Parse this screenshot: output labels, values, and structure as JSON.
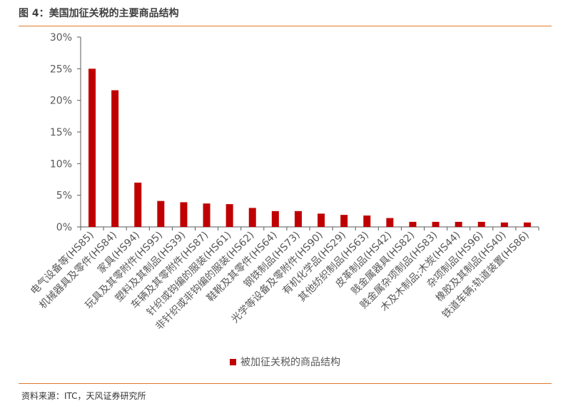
{
  "figure_title": "图 4：美国加征关税的主要商品结构",
  "source": "资料来源：ITC，天风证券研究所",
  "colors": {
    "bar": "#c00000",
    "rule": "#e07b2e",
    "axis": "#595959"
  },
  "chart_data": {
    "type": "bar",
    "title": "",
    "xlabel": "",
    "ylabel": "",
    "ylim": [
      0,
      30
    ],
    "y_ticks": [
      "0%",
      "5%",
      "10%",
      "15%",
      "20%",
      "25%",
      "30%"
    ],
    "y_tick_values": [
      0,
      5,
      10,
      15,
      20,
      25,
      30
    ],
    "grid": false,
    "legend_position": "bottom",
    "categories": [
      "电气设备等(HS85)",
      "机械器具及零件(HS84)",
      "家具(HS94)",
      "玩具及其零附件(HS95)",
      "塑料及其制品(HS39)",
      "车辆及其零附件(HS87)",
      "针织或钩编的服装(HS61)",
      "非针织或非钩编的服装(HS62)",
      "鞋靴及其零件(HS64)",
      "钢铁制品(HS73)",
      "光学等设备及零附件(HS90)",
      "有机化学品(HS29)",
      "其他纺织制品(HS63)",
      "皮革制品(HS42)",
      "贱金属器具(HS82)",
      "贱金属杂项制品(HS83)",
      "木及木制品;木炭(HS44)",
      "杂项制品(HS96)",
      "橡胶及其制品(HS40)",
      "铁道车辆;轨道装置(HS86)"
    ],
    "series": [
      {
        "name": "被加征关税的商品结构",
        "values": [
          25.0,
          21.6,
          7.0,
          4.1,
          3.9,
          3.7,
          3.6,
          3.0,
          2.5,
          2.5,
          2.1,
          1.9,
          1.8,
          1.4,
          0.8,
          0.8,
          0.8,
          0.8,
          0.7,
          0.7
        ]
      }
    ]
  }
}
